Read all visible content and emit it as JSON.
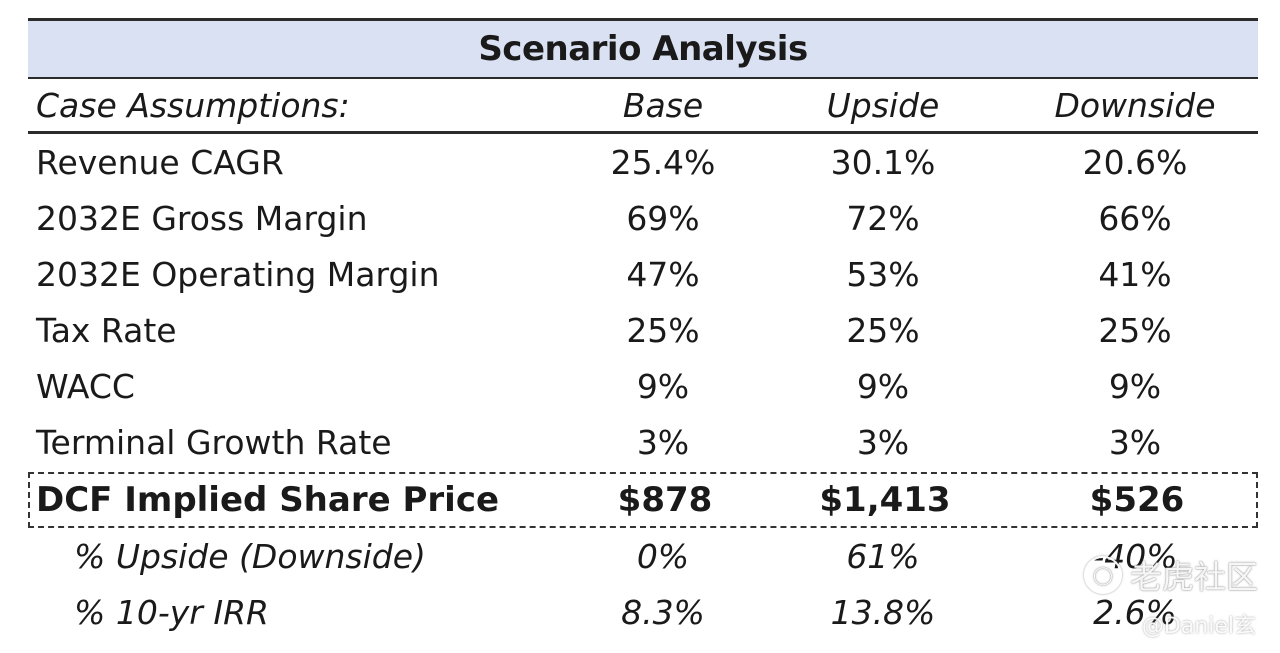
{
  "title": "Scenario Analysis",
  "header": {
    "label": "Case Assumptions:",
    "columns": [
      "Base",
      "Upside",
      "Downside"
    ]
  },
  "rows": [
    {
      "label": "Revenue CAGR",
      "values": [
        "25.4%",
        "30.1%",
        "20.6%"
      ]
    },
    {
      "label": "2032E Gross Margin",
      "values": [
        "69%",
        "72%",
        "66%"
      ]
    },
    {
      "label": "2032E Operating Margin",
      "values": [
        "47%",
        "53%",
        "41%"
      ]
    },
    {
      "label": "Tax Rate",
      "values": [
        "25%",
        "25%",
        "25%"
      ]
    },
    {
      "label": "WACC",
      "values": [
        "9%",
        "9%",
        "9%"
      ]
    },
    {
      "label": "Terminal Growth Rate",
      "values": [
        "3%",
        "3%",
        "3%"
      ]
    }
  ],
  "dcf": {
    "label": "DCF Implied Share Price",
    "values": [
      "$878",
      "$1,413",
      "$526"
    ]
  },
  "subrows": [
    {
      "label": "% Upside (Downside)",
      "values": [
        "0%",
        "61%",
        "-40%"
      ]
    },
    {
      "label": "% 10-yr IRR",
      "values": [
        "8.3%",
        "13.8%",
        "2.6%"
      ]
    }
  ],
  "watermark": {
    "brand": "老虎社区",
    "author": "@Daniel玄",
    "icon": "tiger-logo-icon"
  }
}
